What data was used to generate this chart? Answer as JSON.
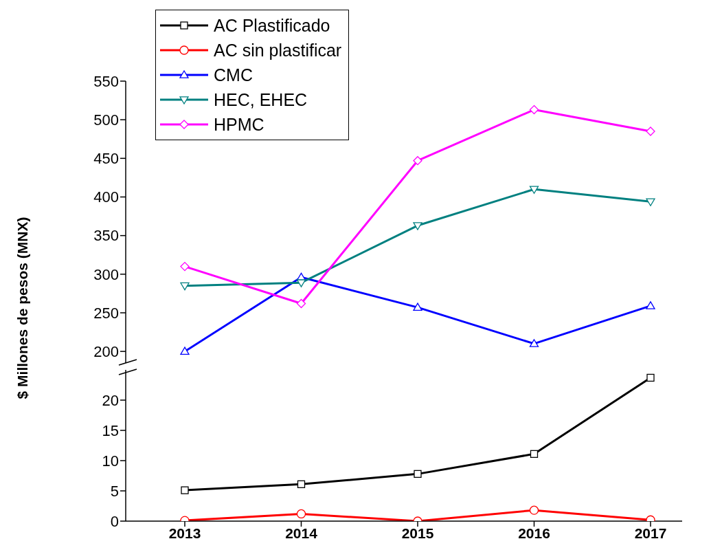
{
  "chart_data": [
    {
      "type": "line",
      "ylabel": "$ Millones de pesos (MNX)",
      "categories": [
        "2013",
        "2014",
        "2015",
        "2016",
        "2017"
      ],
      "ylim": [
        185,
        550
      ],
      "yticks": [
        200,
        250,
        300,
        350,
        400,
        450,
        500,
        550
      ],
      "tick_labels": "y",
      "legend": "top left",
      "series": [
        {
          "name": "CMC",
          "color": "#0000ff",
          "marker": "triangle",
          "values": [
            200,
            296,
            257,
            210,
            259
          ]
        },
        {
          "name": "HEC, EHEC",
          "color": "#008080",
          "marker": "triangle-down",
          "values": [
            285,
            289,
            363,
            410,
            394
          ]
        },
        {
          "name": "HPMC",
          "color": "#ff00ff",
          "marker": "diamond",
          "values": [
            310,
            262,
            447,
            513,
            485
          ]
        }
      ]
    },
    {
      "type": "line",
      "categories": [
        "2013",
        "2014",
        "2015",
        "2016",
        "2017"
      ],
      "ylim": [
        0,
        25
      ],
      "yticks": [
        0,
        5,
        10,
        15,
        20
      ],
      "legend": "top left",
      "series": [
        {
          "name": "AC Plastificado",
          "color": "#000000",
          "marker": "square",
          "values": [
            5.1,
            6.1,
            7.8,
            11.1,
            23.7
          ]
        },
        {
          "name": "AC sin plastificar",
          "color": "#ff0000",
          "marker": "circle",
          "values": [
            0.1,
            1.2,
            0,
            1.8,
            0.2
          ]
        }
      ]
    }
  ]
}
